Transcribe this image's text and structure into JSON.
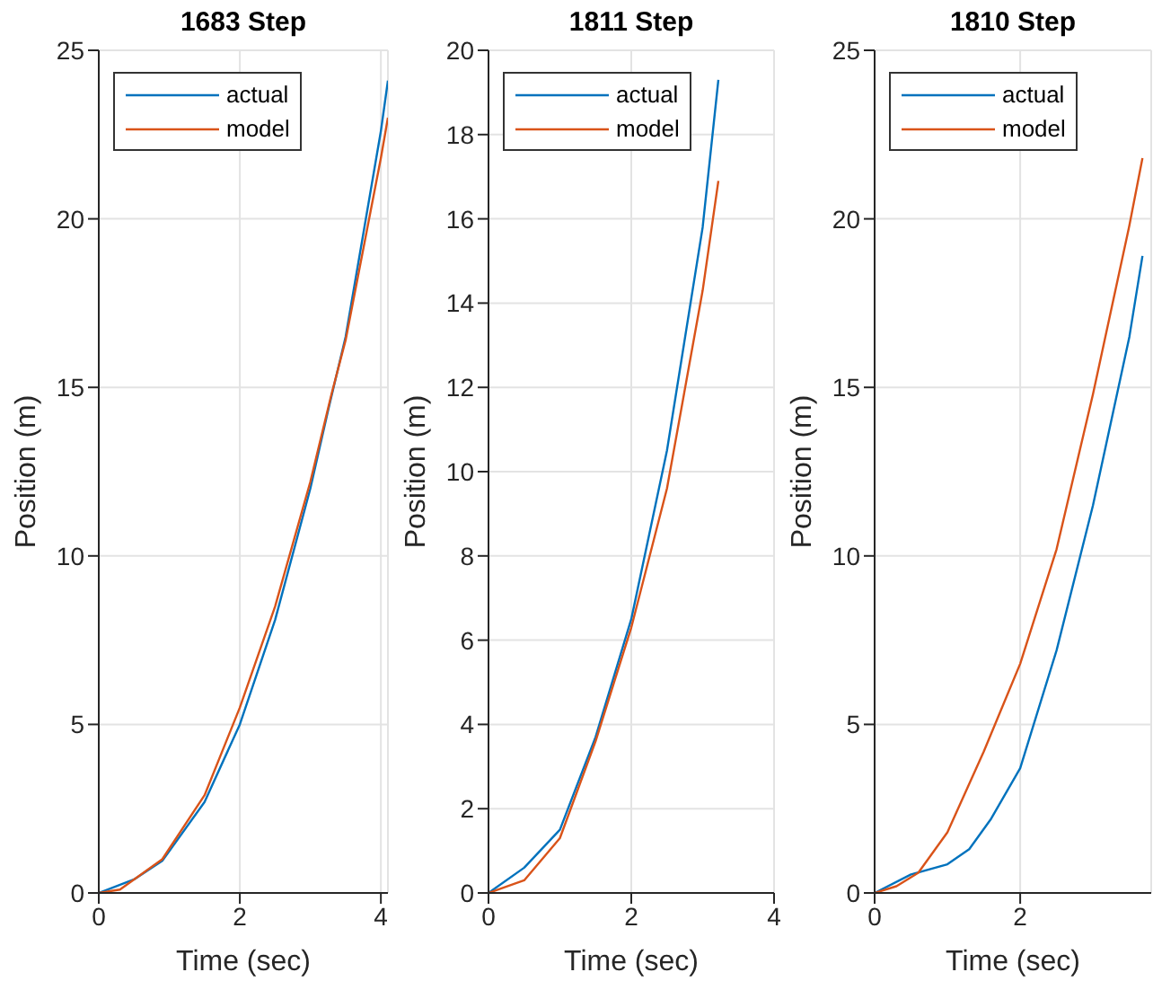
{
  "chart_data": [
    {
      "type": "line",
      "title": "1683 Step",
      "xlabel": "Time (sec)",
      "ylabel": "Position (m)",
      "xlim": [
        0,
        4.1
      ],
      "xticks": [
        0,
        2,
        4
      ],
      "ylim": [
        0,
        25
      ],
      "yticks": [
        0,
        5,
        10,
        15,
        20,
        25
      ],
      "grid": true,
      "legend": "top left",
      "marker": "none",
      "line_style": "solid",
      "series": [
        {
          "name": "actual",
          "color": "#0072bd",
          "x": [
            0,
            0.5,
            0.9,
            1.5,
            2,
            2.5,
            3,
            3.25,
            3.5,
            4,
            4.1
          ],
          "values": [
            0,
            0.4,
            0.95,
            2.7,
            5,
            8.1,
            12,
            14.3,
            16.5,
            22.6,
            24.1
          ]
        },
        {
          "name": "model",
          "color": "#d95319",
          "x": [
            0,
            0.3,
            0.9,
            1.5,
            2,
            2.5,
            3,
            3.3,
            3.5,
            4,
            4.1
          ],
          "values": [
            0,
            0.1,
            1,
            2.9,
            5.5,
            8.5,
            12.2,
            14.8,
            16.4,
            21.8,
            23
          ]
        }
      ]
    },
    {
      "type": "line",
      "title": "1811 Step",
      "xlabel": "Time (sec)",
      "ylabel": "Position (m)",
      "xlim": [
        0,
        4
      ],
      "xticks": [
        0,
        2,
        4
      ],
      "ylim": [
        0,
        20
      ],
      "yticks": [
        0,
        2,
        4,
        6,
        8,
        10,
        12,
        14,
        16,
        18,
        20
      ],
      "grid": true,
      "legend": "top left",
      "marker": "none",
      "line_style": "solid",
      "series": [
        {
          "name": "actual",
          "color": "#0072bd",
          "x": [
            0,
            0.5,
            1,
            1.5,
            2,
            2.5,
            3,
            3.22
          ],
          "values": [
            0,
            0.6,
            1.5,
            3.7,
            6.5,
            10.5,
            15.8,
            19.3
          ]
        },
        {
          "name": "model",
          "color": "#d95319",
          "x": [
            0,
            0.5,
            1,
            1.5,
            2,
            2.5,
            3,
            3.22
          ],
          "values": [
            0,
            0.3,
            1.3,
            3.6,
            6.3,
            9.6,
            14.3,
            16.9
          ]
        }
      ]
    },
    {
      "type": "line",
      "title": "1810 Step",
      "xlabel": "Time (sec)",
      "ylabel": "Position (m)",
      "xlim": [
        0,
        3.8
      ],
      "xticks": [
        0,
        2
      ],
      "ylim": [
        0,
        25
      ],
      "yticks": [
        0,
        5,
        10,
        15,
        20,
        25
      ],
      "grid": true,
      "legend": "top left",
      "marker": "none",
      "line_style": "solid",
      "series": [
        {
          "name": "actual",
          "color": "#0072bd",
          "x": [
            0,
            0.5,
            1,
            1.3,
            1.6,
            2,
            2.5,
            3,
            3.5,
            3.68
          ],
          "values": [
            0,
            0.55,
            0.85,
            1.3,
            2.2,
            3.7,
            7.2,
            11.5,
            16.5,
            18.9
          ]
        },
        {
          "name": "model",
          "color": "#d95319",
          "x": [
            0,
            0.3,
            0.6,
            1,
            1.5,
            2,
            2.5,
            3,
            3.5,
            3.68
          ],
          "values": [
            0,
            0.2,
            0.6,
            1.8,
            4.2,
            6.8,
            10.2,
            14.8,
            19.8,
            21.8
          ]
        }
      ]
    }
  ]
}
